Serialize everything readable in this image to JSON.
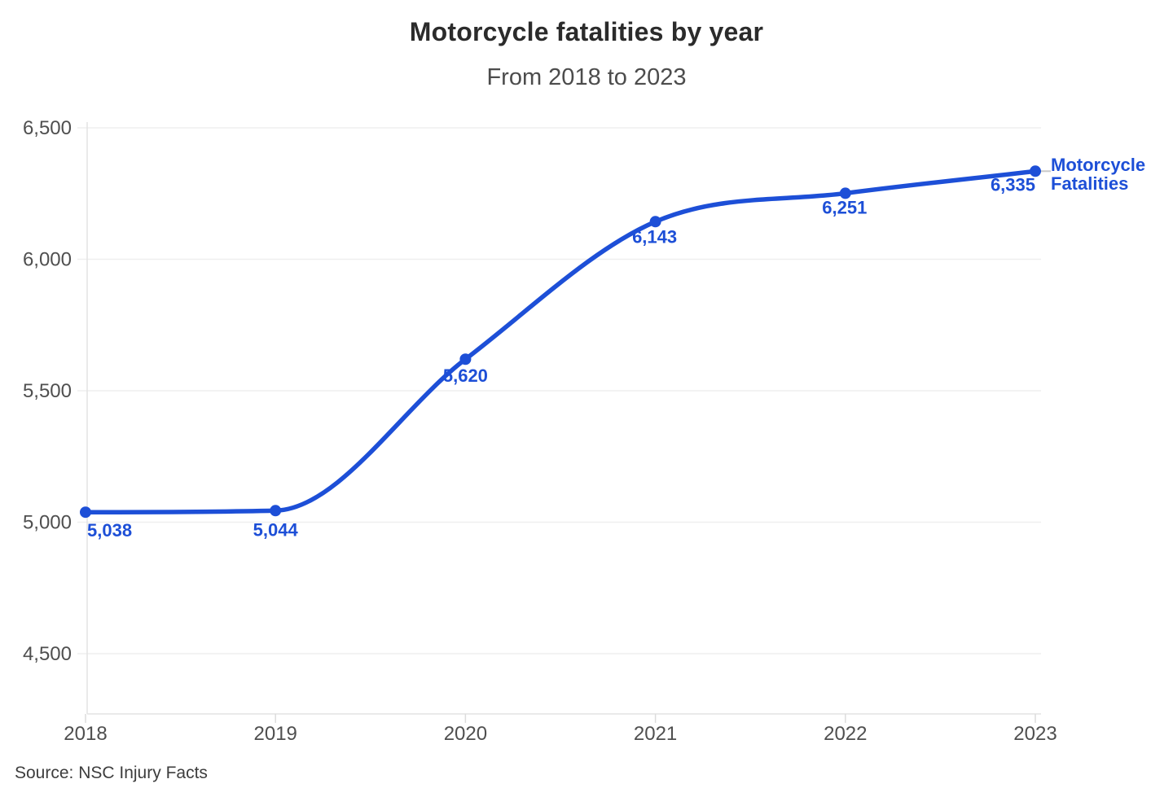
{
  "header": {
    "title": "Motorcycle fatalities by year",
    "subtitle": "From 2018 to 2023"
  },
  "footer": {
    "source": "Source: NSC Injury Facts"
  },
  "chart_data": {
    "type": "line",
    "title": "Motorcycle fatalities by year",
    "subtitle": "From 2018 to 2023",
    "x": [
      2018,
      2019,
      2020,
      2021,
      2022,
      2023
    ],
    "x_tick_labels": [
      "2018",
      "2019",
      "2020",
      "2021",
      "2022",
      "2023"
    ],
    "series": [
      {
        "name": "Motorcycle Fatalities",
        "legend_lines": [
          "Motorcycle",
          "Fatalities"
        ],
        "values": [
          5038,
          5044,
          5620,
          6143,
          6251,
          6335
        ],
        "value_labels": [
          "5,038",
          "5,044",
          "5,620",
          "6,143",
          "6,251",
          "6,335"
        ]
      }
    ],
    "xlabel": "",
    "ylabel": "",
    "ylim": [
      4500,
      6500
    ],
    "y_tick_values": [
      6500,
      6000,
      5500,
      5000,
      4500
    ],
    "y_tick_labels": [
      "6,500",
      "6,000",
      "5,500",
      "5,000",
      "4,500"
    ],
    "grid": true,
    "legend_position": "end-of-line",
    "colors": {
      "line": "#1d4fd7",
      "grid": "#efefef",
      "axis": "#e3e3e3",
      "tick": "#dcdcdc",
      "leader": "#c9c9c9",
      "tick_text": "#4f4f4f"
    },
    "source": "Source: NSC Injury Facts"
  }
}
